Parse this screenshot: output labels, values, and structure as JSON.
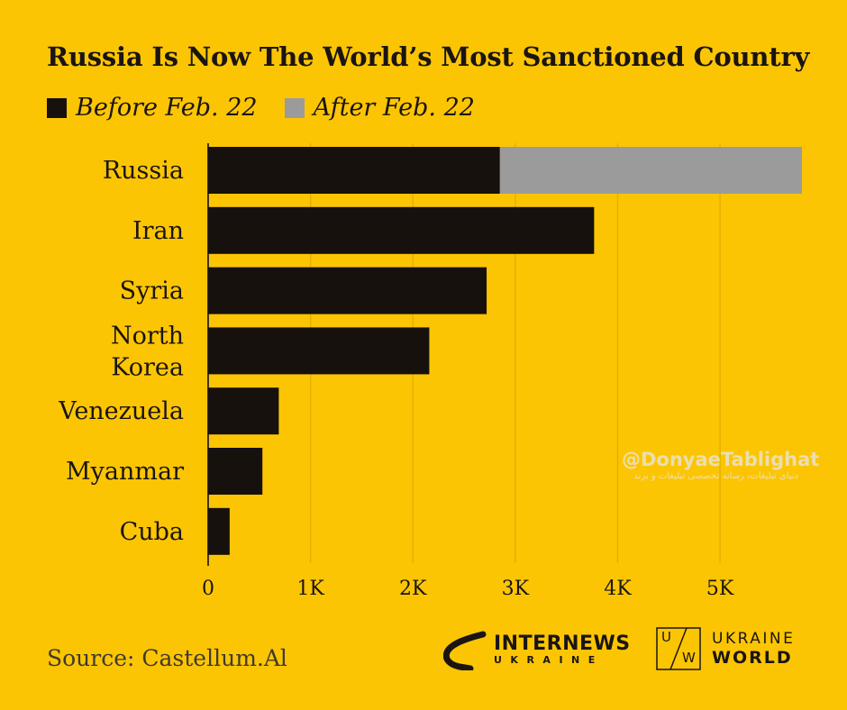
{
  "chart_data": {
    "type": "bar",
    "orientation": "horizontal",
    "stacked": true,
    "title": "Russia Is Now The World’s Most Sanctioned Country",
    "categories": [
      "Russia",
      "Iran",
      "Syria",
      "North Korea",
      "Venezuela",
      "Myanmar",
      "Cuba"
    ],
    "series": [
      {
        "name": "Before Feb. 22",
        "color": "#16110d",
        "values": [
          2850,
          3770,
          2720,
          2160,
          690,
          530,
          210
        ]
      },
      {
        "name": "After Feb. 22",
        "color": "#9b9b9b",
        "values": [
          2950,
          0,
          0,
          0,
          0,
          0,
          0
        ]
      }
    ],
    "xticks": [
      0,
      1000,
      2000,
      3000,
      4000,
      5000
    ],
    "xtick_labels": [
      "0",
      "1K",
      "2K",
      "3K",
      "4K",
      "5K"
    ],
    "xlim": [
      0,
      5800
    ],
    "grid": "vertical",
    "legend_position": "top-left"
  },
  "source": "Source: Castellum.Al",
  "watermark": {
    "handle": "@DonyaeTablighat",
    "subtitle": "دنیای تبلیغات، رسانه تخصصی تبلیغات و برند"
  },
  "logos": {
    "internews_main": "INTERNEWS",
    "internews_sub": "UKRAINE",
    "uw_box_u": "U",
    "uw_box_w": "W",
    "uw_line1": "UKRAINE",
    "uw_line2": "WORLD"
  },
  "colors": {
    "background": "#FCC504",
    "before": "#16110d",
    "after": "#9b9b9b",
    "grid": "#e2b000"
  }
}
